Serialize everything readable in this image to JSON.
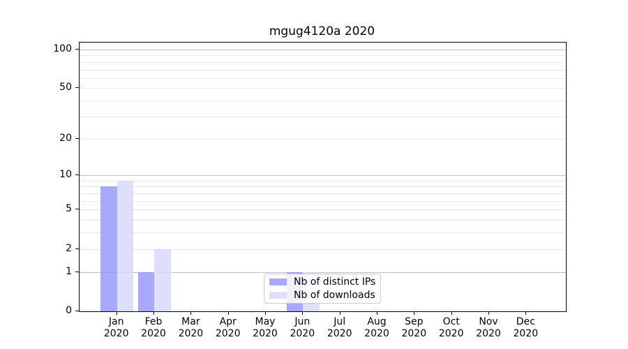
{
  "chart_data": {
    "type": "bar",
    "title": "mgug4120a 2020",
    "x_tick_months": [
      "Jan",
      "Feb",
      "Mar",
      "Apr",
      "May",
      "Jun",
      "Jul",
      "Aug",
      "Sep",
      "Oct",
      "Nov",
      "Dec"
    ],
    "x_tick_year": "2020",
    "series": [
      {
        "name": "Nb of distinct IPs",
        "color": "rgba(148,148,250,0.8)",
        "values": [
          8,
          1,
          0,
          0,
          0,
          1,
          0,
          0,
          0,
          0,
          0,
          0
        ]
      },
      {
        "name": "Nb of downloads",
        "color": "rgba(214,214,252,0.8)",
        "values": [
          9,
          2,
          0,
          0,
          0,
          1,
          0,
          0,
          0,
          0,
          0,
          0
        ]
      }
    ],
    "xlabel": "",
    "ylabel": "",
    "y_scale": "log10(1+value)",
    "ylim": [
      0,
      113
    ],
    "y_ticks": [
      0,
      1,
      2,
      5,
      10,
      20,
      50,
      100
    ],
    "gridlines": {
      "major": [
        1,
        10,
        100
      ],
      "minor": [
        2,
        3,
        4,
        5,
        6,
        7,
        8,
        9,
        20,
        30,
        40,
        50,
        60,
        70,
        80,
        90
      ]
    },
    "legend": {
      "position": "lower center"
    },
    "colors": {
      "major_grid": "#bdbdbd",
      "minor_grid": "#e9e9e9",
      "spine": "#000000",
      "text": "#000000"
    }
  }
}
